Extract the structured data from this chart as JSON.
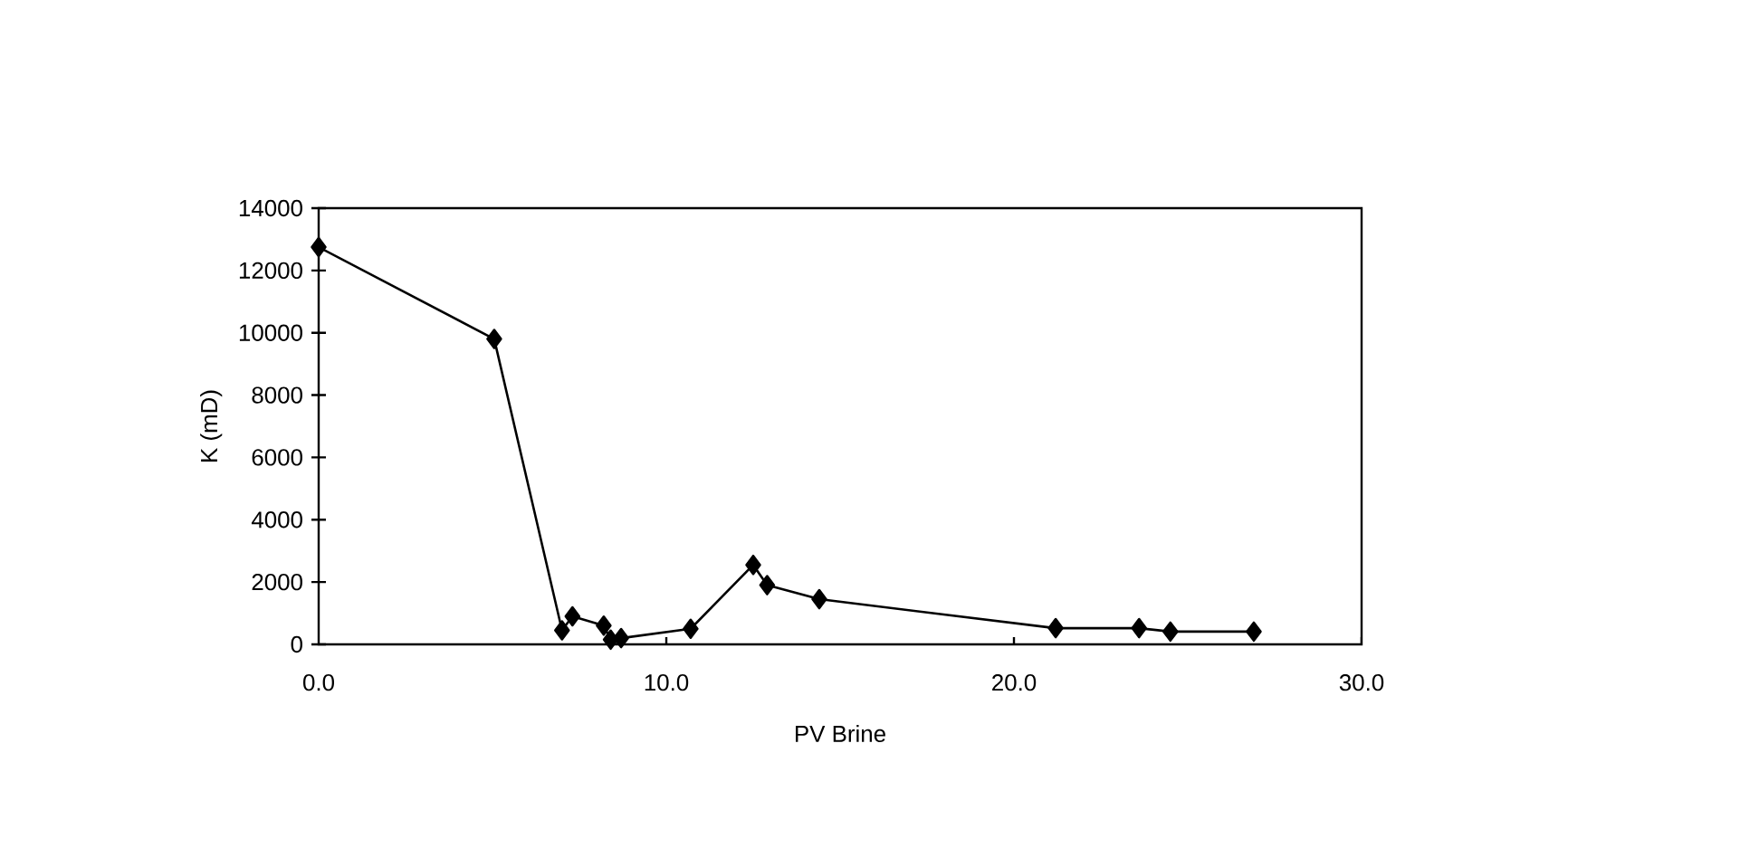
{
  "chart_data": {
    "type": "line",
    "xlabel": "PV Brine",
    "ylabel": "K (mD)",
    "x": [
      0.0,
      5.05,
      7.0,
      7.3,
      8.2,
      8.4,
      8.7,
      10.7,
      12.5,
      12.9,
      14.4,
      21.2,
      23.6,
      24.5,
      26.9
    ],
    "values": [
      12750,
      9800,
      450,
      900,
      600,
      150,
      200,
      500,
      2550,
      1900,
      1450,
      520,
      520,
      410,
      410
    ],
    "color": "#000000",
    "marker": "diamond",
    "line_style": "solid",
    "xlim": [
      0,
      30
    ],
    "ylim": [
      0,
      14000
    ],
    "xticks": [
      {
        "value": 0,
        "label": "0.0"
      },
      {
        "value": 10,
        "label": "10.0"
      },
      {
        "value": 20,
        "label": "20.0"
      },
      {
        "value": 30,
        "label": "30.0"
      }
    ],
    "yticks": [
      0,
      2000,
      4000,
      6000,
      8000,
      10000,
      12000,
      14000
    ]
  }
}
